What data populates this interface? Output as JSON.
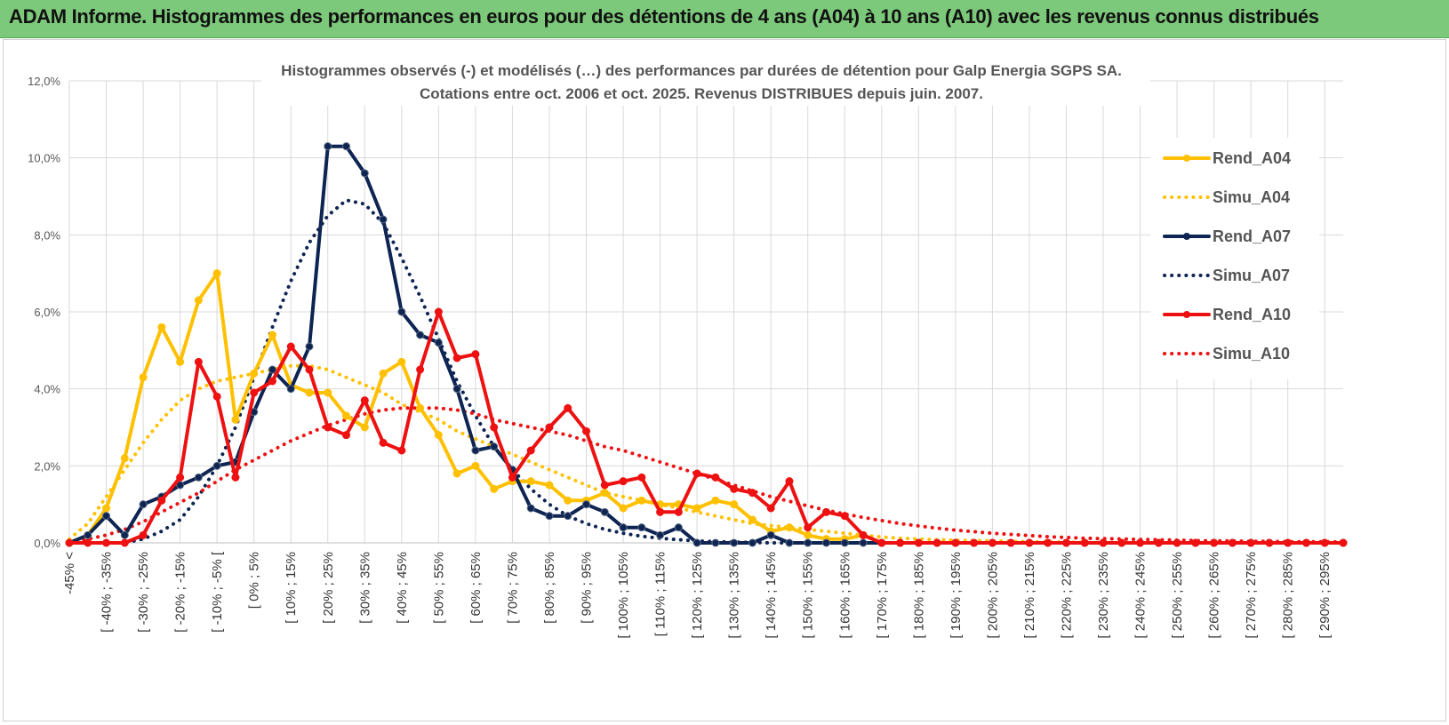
{
  "banner": {
    "title": "ADAM Informe. Histogrammes des performances en euros pour des détentions de 4 ans (A04) à 10 ans (A10) avec les revenus connus distribués"
  },
  "colors": {
    "banner": "#7dc97b",
    "A04": "#ffc000",
    "A07": "#0e2452",
    "A10": "#ee1111",
    "grid": "#d9d9d9"
  },
  "chart_data": {
    "type": "line",
    "title": "Histogrammes observés (-) et modélisés (…) des performances par durées de détention pour Galp Energia SGPS SA.",
    "subtitle": "Cotations entre oct. 2006 et oct. 2025. Revenus DISTRIBUES depuis juin. 2007.",
    "ylim": [
      0,
      12
    ],
    "y_ticks": [
      "0,0%",
      "2,0%",
      "4,0%",
      "6,0%",
      "8,0%",
      "10,0%",
      "12,0%"
    ],
    "grid": true,
    "legend_position": "right",
    "category_labels": [
      "-45% <",
      "[ -40% ; -35%",
      "[ -30% ; -25%",
      "[ -20% ; -15%",
      "[ -10% ; -5% [",
      "[ 0% ; 5%",
      "[ 10% ; 15%",
      "[ 20% ; 25%",
      "[ 30% ; 35%",
      "[ 40% ; 45%",
      "[ 50% ; 55%",
      "[ 60% ; 65%",
      "[ 70% ; 75%",
      "[ 80% ; 85%",
      "[ 90% ; 95%",
      "[ 100% ; 105%",
      "[ 110% ; 115%",
      "[ 120% ; 125%",
      "[ 130% ; 135%",
      "[ 140% ; 145%",
      "[ 150% ; 155%",
      "[ 160% ; 165%",
      "[ 170% ; 175%",
      "[ 180% ; 185%",
      "[ 190% ; 195%",
      "[ 200% ; 205%",
      "[ 210% ; 215%",
      "[ 220% ; 225%",
      "[ 230% ; 235%",
      "[ 240% ; 245%",
      "[ 250% ; 255%",
      "[ 260% ; 265%",
      "[ 270% ; 275%",
      "[ 280% ; 285%",
      "[ 290% ; 295%"
    ],
    "x": [
      -45,
      -40,
      -35,
      -30,
      -25,
      -20,
      -15,
      -10,
      -5,
      0,
      5,
      10,
      15,
      20,
      25,
      30,
      35,
      40,
      45,
      50,
      55,
      60,
      65,
      70,
      75,
      80,
      85,
      90,
      95,
      100,
      105,
      110,
      115,
      120,
      125,
      130,
      135,
      140,
      145,
      150,
      155,
      160,
      165,
      170,
      175,
      180,
      185,
      190,
      195,
      200,
      205,
      210,
      215,
      220,
      225,
      230,
      235,
      240,
      245,
      250,
      255,
      260,
      265,
      270,
      275,
      280,
      285,
      290,
      295,
      300
    ],
    "series": [
      {
        "name": "Rend_A04",
        "style": "solid",
        "color": "#ffc000",
        "values": [
          0.0,
          0.2,
          0.9,
          2.2,
          4.3,
          5.6,
          4.7,
          6.3,
          7.0,
          3.2,
          4.4,
          5.4,
          4.1,
          3.9,
          3.9,
          3.3,
          3.0,
          4.4,
          4.7,
          3.5,
          2.8,
          1.8,
          2.0,
          1.4,
          1.6,
          1.6,
          1.5,
          1.1,
          1.1,
          1.3,
          0.9,
          1.1,
          1.0,
          1.0,
          0.9,
          1.1,
          1.0,
          0.6,
          0.3,
          0.4,
          0.2,
          0.1,
          0.1,
          0.2,
          0.0,
          0,
          0,
          0,
          0,
          0,
          0,
          0,
          0,
          0,
          0,
          0,
          0,
          0,
          0,
          0,
          0,
          0,
          0,
          0,
          0,
          0,
          0,
          0,
          0,
          0
        ]
      },
      {
        "name": "Simu_A04",
        "style": "dotted",
        "color": "#ffc000",
        "values": [
          0.1,
          0.5,
          1.2,
          1.9,
          2.6,
          3.2,
          3.7,
          4.0,
          4.2,
          4.3,
          4.4,
          4.5,
          4.6,
          4.6,
          4.5,
          4.3,
          4.1,
          3.9,
          3.6,
          3.4,
          3.2,
          2.9,
          2.7,
          2.5,
          2.3,
          2.1,
          1.9,
          1.7,
          1.5,
          1.3,
          1.2,
          1.1,
          1.0,
          0.9,
          0.8,
          0.7,
          0.6,
          0.5,
          0.45,
          0.4,
          0.35,
          0.3,
          0.25,
          0.2,
          0.15,
          0.12,
          0.1,
          0.08,
          0.07,
          0.06,
          0.05,
          0.04,
          0.03,
          0.02,
          0.02,
          0.01,
          0.01,
          0,
          0,
          0,
          0,
          0,
          0,
          0,
          0,
          0,
          0,
          0,
          0,
          0
        ]
      },
      {
        "name": "Rend_A07",
        "style": "solid",
        "color": "#0e2452",
        "values": [
          0.0,
          0.2,
          0.7,
          0.2,
          1.0,
          1.2,
          1.5,
          1.7,
          2.0,
          2.1,
          3.4,
          4.5,
          4.0,
          5.1,
          10.3,
          10.3,
          9.6,
          8.4,
          6.0,
          5.4,
          5.2,
          4.0,
          2.4,
          2.5,
          1.9,
          0.9,
          0.7,
          0.7,
          1.0,
          0.8,
          0.4,
          0.4,
          0.2,
          0.4,
          0.0,
          0.0,
          0.0,
          0.0,
          0.2,
          0.0,
          0,
          0,
          0,
          0,
          0,
          0,
          0,
          0,
          0,
          0,
          0,
          0,
          0,
          0,
          0,
          0,
          0,
          0,
          0,
          0,
          0,
          0,
          0,
          0,
          0,
          0,
          0,
          0,
          0,
          0
        ]
      },
      {
        "name": "Simu_A07",
        "style": "dotted",
        "color": "#0e2452",
        "values": [
          0,
          0,
          0,
          0,
          0.1,
          0.3,
          0.6,
          1.2,
          2.0,
          3.0,
          4.3,
          5.6,
          6.8,
          7.8,
          8.5,
          8.9,
          8.8,
          8.3,
          7.4,
          6.4,
          5.3,
          4.2,
          3.3,
          2.5,
          1.9,
          1.4,
          1.0,
          0.7,
          0.5,
          0.35,
          0.25,
          0.17,
          0.12,
          0.08,
          0.05,
          0.03,
          0.02,
          0.01,
          0,
          0,
          0,
          0,
          0,
          0,
          0,
          0,
          0,
          0,
          0,
          0,
          0,
          0,
          0,
          0,
          0,
          0,
          0,
          0,
          0,
          0,
          0,
          0,
          0,
          0,
          0,
          0,
          0,
          0,
          0,
          0
        ]
      },
      {
        "name": "Rend_A10",
        "style": "solid",
        "color": "#ee1111",
        "values": [
          0.0,
          0.0,
          0.0,
          0.0,
          0.2,
          1.1,
          1.7,
          4.7,
          3.8,
          1.7,
          3.9,
          4.2,
          5.1,
          4.5,
          3.0,
          2.8,
          3.7,
          2.6,
          2.4,
          4.5,
          6.0,
          4.8,
          4.9,
          3.0,
          1.7,
          2.4,
          3.0,
          3.5,
          2.9,
          1.5,
          1.6,
          1.7,
          0.8,
          0.8,
          1.8,
          1.7,
          1.4,
          1.3,
          0.9,
          1.6,
          0.4,
          0.8,
          0.7,
          0.2,
          0.0,
          0,
          0,
          0,
          0,
          0,
          0,
          0,
          0,
          0,
          0,
          0,
          0,
          0,
          0,
          0,
          0,
          0,
          0,
          0,
          0,
          0,
          0,
          0,
          0,
          0
        ]
      },
      {
        "name": "Simu_A10",
        "style": "dotted",
        "color": "#ee1111",
        "values": [
          0.05,
          0.1,
          0.2,
          0.35,
          0.55,
          0.8,
          1.05,
          1.3,
          1.6,
          1.9,
          2.15,
          2.4,
          2.65,
          2.85,
          3.05,
          3.2,
          3.35,
          3.45,
          3.5,
          3.5,
          3.5,
          3.45,
          3.35,
          3.2,
          3.1,
          3.0,
          2.9,
          2.8,
          2.65,
          2.5,
          2.4,
          2.25,
          2.1,
          1.95,
          1.8,
          1.65,
          1.5,
          1.35,
          1.2,
          1.08,
          0.96,
          0.85,
          0.75,
          0.66,
          0.58,
          0.5,
          0.44,
          0.38,
          0.33,
          0.29,
          0.25,
          0.22,
          0.19,
          0.16,
          0.14,
          0.12,
          0.11,
          0.1,
          0.09,
          0.08,
          0.07,
          0.06,
          0.05,
          0.05,
          0.04,
          0.04,
          0.03,
          0.03,
          0.03,
          0.02
        ]
      }
    ]
  }
}
